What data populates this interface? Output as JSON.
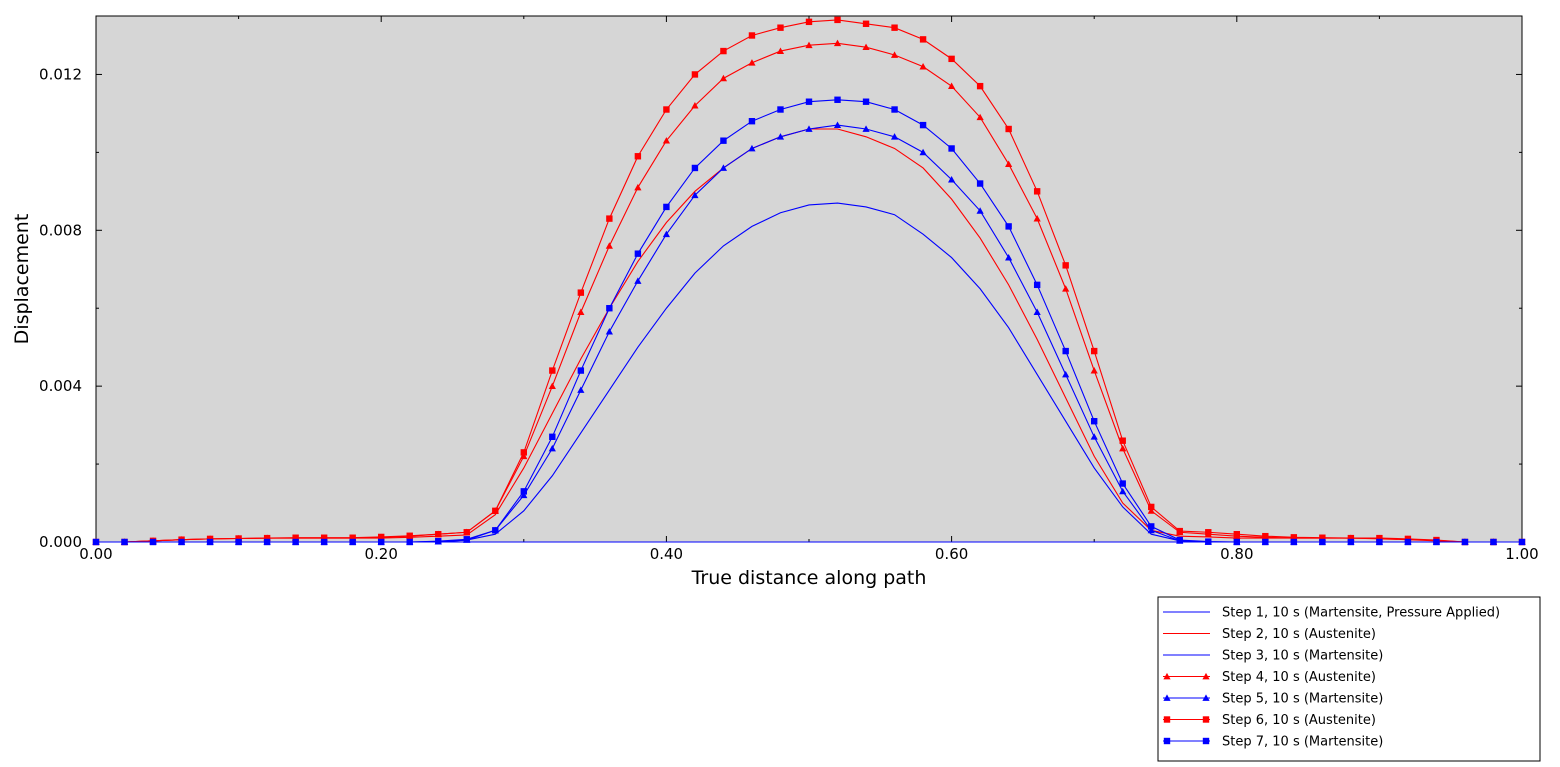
{
  "chart_data": {
    "type": "line",
    "title": "",
    "xlabel": "True distance along path",
    "ylabel": "Displacement",
    "xlim": [
      0.0,
      1.0
    ],
    "ylim": [
      0.0,
      0.0135
    ],
    "xticks": [
      0.0,
      0.2,
      0.4,
      0.6,
      0.8,
      1.0
    ],
    "xtick_labels": [
      "0.00",
      "0.20",
      "0.40",
      "0.60",
      "0.80",
      "1.00"
    ],
    "yticks": [
      0.0,
      0.004,
      0.008,
      0.012
    ],
    "ytick_labels": [
      "0.000",
      "0.004",
      "0.008",
      "0.012"
    ],
    "grid": false,
    "plot_background": "#d6d6d6",
    "legend_position": "bottom-right, below plot",
    "x": [
      0.0,
      0.02,
      0.04,
      0.06,
      0.08,
      0.1,
      0.12,
      0.14,
      0.16,
      0.18,
      0.2,
      0.22,
      0.24,
      0.26,
      0.28,
      0.3,
      0.32,
      0.34,
      0.36,
      0.38,
      0.4,
      0.42,
      0.44,
      0.46,
      0.48,
      0.5,
      0.52,
      0.54,
      0.56,
      0.58,
      0.6,
      0.62,
      0.64,
      0.66,
      0.68,
      0.7,
      0.72,
      0.74,
      0.76,
      0.78,
      0.8,
      0.82,
      0.84,
      0.86,
      0.88,
      0.9,
      0.92,
      0.94,
      0.96,
      0.98,
      1.0
    ],
    "series": [
      {
        "name": "Step 1, 10 s (Martensite, Pressure Applied)",
        "color": "#0000ff",
        "marker": "none",
        "values": [
          0,
          0,
          0,
          0,
          0,
          0,
          0,
          0,
          0,
          0,
          0,
          0,
          0,
          0,
          0,
          0,
          0,
          0,
          0,
          0,
          0,
          0,
          0,
          0,
          0,
          0,
          0,
          0,
          0,
          0,
          0,
          0,
          0,
          0,
          0,
          0,
          0,
          0,
          0,
          0,
          0,
          0,
          0,
          0,
          0,
          0,
          0,
          0,
          0,
          0,
          0
        ]
      },
      {
        "name": "Step 2, 10 s (Austenite)",
        "color": "#ff0000",
        "marker": "none",
        "values": [
          0,
          0,
          3e-05,
          6e-05,
          8e-05,
          9e-05,
          0.0001,
          0.0001,
          0.0001,
          0.0001,
          0.0001,
          0.00012,
          0.00015,
          0.00018,
          0.0007,
          0.0019,
          0.0033,
          0.0047,
          0.006,
          0.0072,
          0.0082,
          0.009,
          0.0096,
          0.0101,
          0.0104,
          0.0106,
          0.0106,
          0.0104,
          0.0101,
          0.0096,
          0.0088,
          0.0078,
          0.0066,
          0.0052,
          0.0037,
          0.0022,
          0.001,
          0.0003,
          0.00015,
          0.00013,
          0.0001,
          0.0001,
          0.0001,
          0.0001,
          0.0001,
          8e-05,
          6e-05,
          3e-05,
          0,
          0,
          0
        ]
      },
      {
        "name": "Step 3, 10 s (Martensite)",
        "color": "#0000ff",
        "marker": "none",
        "values": [
          0,
          0,
          0,
          0,
          0,
          0,
          0,
          0,
          0,
          0,
          0,
          0,
          0,
          5e-05,
          0.0002,
          0.0008,
          0.0017,
          0.0028,
          0.0039,
          0.005,
          0.006,
          0.0069,
          0.0076,
          0.0081,
          0.00845,
          0.00865,
          0.0087,
          0.0086,
          0.0084,
          0.0079,
          0.0073,
          0.0065,
          0.0055,
          0.0043,
          0.0031,
          0.0019,
          0.0009,
          0.0002,
          3e-05,
          0,
          0,
          0,
          0,
          0,
          0,
          0,
          0,
          0,
          0,
          0,
          0
        ]
      },
      {
        "name": "Step 4, 10 s (Austenite)",
        "color": "#ff0000",
        "marker": "triangle",
        "values": [
          0,
          0,
          3e-05,
          6e-05,
          8e-05,
          9e-05,
          0.0001,
          0.0001,
          0.0001,
          0.0001,
          0.00012,
          0.00015,
          0.0002,
          0.00025,
          0.0008,
          0.0022,
          0.004,
          0.0059,
          0.0076,
          0.0091,
          0.0103,
          0.0112,
          0.0119,
          0.0123,
          0.0126,
          0.01275,
          0.0128,
          0.0127,
          0.0125,
          0.0122,
          0.0117,
          0.0109,
          0.0097,
          0.0083,
          0.0065,
          0.0044,
          0.0024,
          0.0008,
          0.00025,
          0.0002,
          0.00015,
          0.00012,
          0.0001,
          0.0001,
          0.0001,
          9e-05,
          7e-05,
          4e-05,
          0,
          0,
          0
        ]
      },
      {
        "name": "Step 5, 10 s (Martensite)",
        "color": "#0000ff",
        "marker": "triangle",
        "values": [
          0,
          0,
          0,
          0,
          0,
          0,
          0,
          0,
          0,
          0,
          0,
          0,
          1e-05,
          5e-05,
          0.0003,
          0.0012,
          0.0024,
          0.0039,
          0.0054,
          0.0067,
          0.0079,
          0.0089,
          0.0096,
          0.0101,
          0.0104,
          0.0106,
          0.0107,
          0.0106,
          0.0104,
          0.01,
          0.0093,
          0.0085,
          0.0073,
          0.0059,
          0.0043,
          0.0027,
          0.0013,
          0.0003,
          3e-05,
          0,
          0,
          0,
          0,
          0,
          0,
          0,
          0,
          0,
          0,
          0,
          0
        ]
      },
      {
        "name": "Step 6, 10 s (Austenite)",
        "color": "#ff0000",
        "marker": "square",
        "values": [
          0,
          0,
          3e-05,
          6e-05,
          8e-05,
          9e-05,
          0.0001,
          0.00011,
          0.00011,
          0.00011,
          0.00013,
          0.00016,
          0.0002,
          0.00025,
          0.0008,
          0.0023,
          0.0044,
          0.0064,
          0.0083,
          0.0099,
          0.0111,
          0.012,
          0.0126,
          0.013,
          0.0132,
          0.01335,
          0.0134,
          0.0133,
          0.0132,
          0.0129,
          0.0124,
          0.0117,
          0.0106,
          0.009,
          0.0071,
          0.0049,
          0.0026,
          0.0009,
          0.00028,
          0.00025,
          0.0002,
          0.00015,
          0.00012,
          0.00011,
          0.0001,
          0.0001,
          8e-05,
          5e-05,
          0,
          0,
          0
        ]
      },
      {
        "name": "Step 7, 10 s (Martensite)",
        "color": "#0000ff",
        "marker": "square",
        "values": [
          0,
          0,
          0,
          0,
          0,
          0,
          0,
          0,
          0,
          0,
          0,
          0,
          2e-05,
          7e-05,
          0.0003,
          0.0013,
          0.0027,
          0.0044,
          0.006,
          0.0074,
          0.0086,
          0.0096,
          0.0103,
          0.0108,
          0.0111,
          0.0113,
          0.01135,
          0.0113,
          0.0111,
          0.0107,
          0.0101,
          0.0092,
          0.0081,
          0.0066,
          0.0049,
          0.0031,
          0.0015,
          0.0004,
          5e-05,
          1e-05,
          0,
          0,
          0,
          0,
          0,
          0,
          0,
          0,
          0,
          0,
          0
        ]
      }
    ]
  }
}
